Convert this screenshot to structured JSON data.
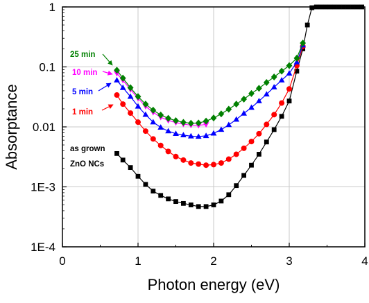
{
  "chart_data": {
    "type": "line",
    "xlabel": "Photon energy (eV)",
    "ylabel": "Absorptance",
    "xlim": [
      0,
      4
    ],
    "ylim": [
      0.0001,
      1
    ],
    "yscale": "log",
    "grid": true,
    "x_ticks": [
      {
        "value": 0,
        "label": "0"
      },
      {
        "value": 1,
        "label": "1"
      },
      {
        "value": 2,
        "label": "2"
      },
      {
        "value": 3,
        "label": "3"
      },
      {
        "value": 4,
        "label": "4"
      }
    ],
    "y_ticks": [
      {
        "value": 0.0001,
        "label": "1E-4"
      },
      {
        "value": 0.001,
        "label": "1E-3"
      },
      {
        "value": 0.01,
        "label": "0.01"
      },
      {
        "value": 0.1,
        "label": "0.1"
      },
      {
        "value": 1,
        "label": "1"
      }
    ],
    "series": [
      {
        "name": "as grown\nZnO NCs",
        "color": "#000000",
        "marker": "square",
        "x": [
          0.72,
          0.8,
          0.9,
          1.0,
          1.1,
          1.2,
          1.3,
          1.4,
          1.5,
          1.6,
          1.7,
          1.8,
          1.9,
          2.0,
          2.1,
          2.2,
          2.3,
          2.4,
          2.5,
          2.6,
          2.7,
          2.8,
          2.9,
          3.0,
          3.1,
          3.18,
          3.24,
          3.3,
          3.36,
          3.42,
          3.48,
          3.54,
          3.6,
          3.66,
          3.72,
          3.78,
          3.84,
          3.9,
          3.96
        ],
        "y": [
          0.0036,
          0.0028,
          0.0021,
          0.0015,
          0.0011,
          0.00085,
          0.00072,
          0.00063,
          0.00057,
          0.00053,
          0.0005,
          0.00047,
          0.00047,
          0.0005,
          0.00058,
          0.00074,
          0.00105,
          0.00155,
          0.0023,
          0.0035,
          0.0056,
          0.009,
          0.015,
          0.027,
          0.085,
          0.2,
          0.5,
          0.97,
          1.0,
          1.0,
          1.0,
          1.0,
          1.0,
          1.0,
          1.0,
          1.0,
          1.0,
          1.0,
          1.0
        ]
      },
      {
        "name": "1 min",
        "color": "#ff0000",
        "marker": "circle",
        "x": [
          0.72,
          0.8,
          0.9,
          1.0,
          1.1,
          1.2,
          1.3,
          1.4,
          1.5,
          1.6,
          1.7,
          1.8,
          1.9,
          2.0,
          2.1,
          2.2,
          2.3,
          2.4,
          2.5,
          2.6,
          2.7,
          2.8,
          2.9,
          3.0,
          3.1,
          3.18
        ],
        "y": [
          0.034,
          0.024,
          0.017,
          0.012,
          0.0085,
          0.0063,
          0.0049,
          0.0039,
          0.0032,
          0.0028,
          0.0025,
          0.0024,
          0.0023,
          0.00235,
          0.0025,
          0.0029,
          0.0035,
          0.0044,
          0.0057,
          0.0077,
          0.011,
          0.016,
          0.025,
          0.043,
          0.105,
          0.22
        ]
      },
      {
        "name": "5 min",
        "color": "#0000ff",
        "marker": "triangle",
        "x": [
          0.72,
          0.8,
          0.9,
          1.0,
          1.1,
          1.2,
          1.3,
          1.4,
          1.5,
          1.6,
          1.7,
          1.8,
          1.9,
          2.0,
          2.1,
          2.2,
          2.3,
          2.4,
          2.5,
          2.6,
          2.7,
          2.8,
          2.9,
          3.0,
          3.1,
          3.18
        ],
        "y": [
          0.06,
          0.045,
          0.032,
          0.022,
          0.016,
          0.012,
          0.0098,
          0.0085,
          0.0077,
          0.0073,
          0.007,
          0.0069,
          0.0071,
          0.0078,
          0.009,
          0.0108,
          0.0133,
          0.0168,
          0.021,
          0.027,
          0.035,
          0.046,
          0.06,
          0.078,
          0.12,
          0.23
        ]
      },
      {
        "name": "10 min",
        "color": "#ff00ff",
        "marker": "triangle-down",
        "x": [
          0.72,
          0.8,
          0.9,
          1.0,
          1.1,
          1.2,
          1.3,
          1.4,
          1.5,
          1.6,
          1.7,
          1.8,
          1.9
        ],
        "y": [
          0.078,
          0.06,
          0.042,
          0.03,
          0.022,
          0.0175,
          0.0145,
          0.0128,
          0.0118,
          0.0111,
          0.0107,
          0.0106,
          0.011
        ]
      },
      {
        "name": "25 min",
        "color": "#008000",
        "marker": "diamond",
        "x": [
          0.72,
          0.8,
          0.9,
          1.0,
          1.1,
          1.2,
          1.3,
          1.4,
          1.5,
          1.6,
          1.7,
          1.8,
          1.9,
          2.0,
          2.1,
          2.2,
          2.3,
          2.4,
          2.5,
          2.6,
          2.7,
          2.8,
          2.9,
          3.0,
          3.1,
          3.18
        ],
        "y": [
          0.088,
          0.065,
          0.045,
          0.032,
          0.024,
          0.019,
          0.0158,
          0.0139,
          0.0127,
          0.0119,
          0.0115,
          0.0116,
          0.0125,
          0.0141,
          0.0165,
          0.0197,
          0.024,
          0.029,
          0.036,
          0.044,
          0.055,
          0.068,
          0.085,
          0.105,
          0.14,
          0.25
        ]
      }
    ]
  }
}
